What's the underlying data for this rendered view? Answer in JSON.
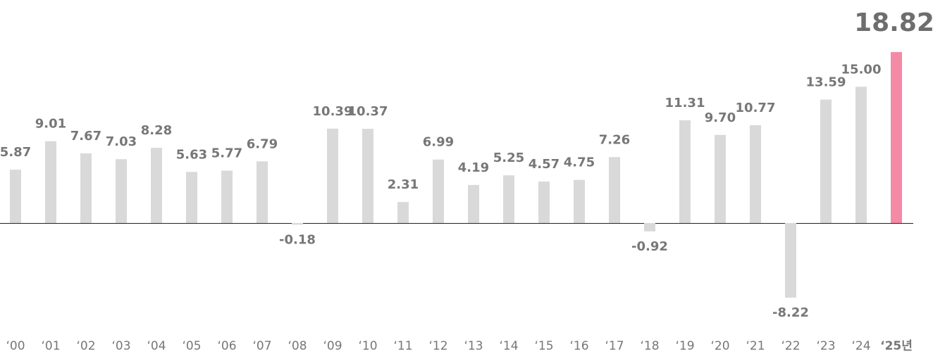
{
  "chart_data": {
    "type": "bar",
    "categories": [
      "‘00",
      "‘01",
      "‘02",
      "‘03",
      "‘04",
      "‘05",
      "‘06",
      "‘07",
      "‘08",
      "‘09",
      "‘10",
      "‘11",
      "‘12",
      "‘13",
      "‘14",
      "‘15",
      "‘16",
      "‘17",
      "‘18",
      "‘19",
      "‘20",
      "‘21",
      "‘22",
      "‘23",
      "‘24",
      "‘25년"
    ],
    "values": [
      5.87,
      9.01,
      7.67,
      7.03,
      8.28,
      5.63,
      5.77,
      6.79,
      -0.18,
      10.39,
      10.37,
      2.31,
      6.99,
      4.19,
      5.25,
      4.57,
      4.75,
      7.26,
      -0.92,
      11.31,
      9.7,
      10.77,
      -8.22,
      13.59,
      15.0,
      18.82
    ],
    "value_labels": [
      "5.87",
      "9.01",
      "7.67",
      "7.03",
      "8.28",
      "5.63",
      "5.77",
      "6.79",
      "-0.18",
      "10.39",
      "10.37",
      "2.31",
      "6.99",
      "4.19",
      "5.25",
      "4.57",
      "4.75",
      "7.26",
      "-0.92",
      "11.31",
      "9.70",
      "10.77",
      "-8.22",
      "13.59",
      "15.00",
      "18.82"
    ],
    "colors": [
      "#d9d9d9",
      "#d9d9d9",
      "#d9d9d9",
      "#d9d9d9",
      "#d9d9d9",
      "#d9d9d9",
      "#d9d9d9",
      "#d9d9d9",
      "#d9d9d9",
      "#d9d9d9",
      "#d9d9d9",
      "#d9d9d9",
      "#d9d9d9",
      "#d9d9d9",
      "#d9d9d9",
      "#d9d9d9",
      "#d9d9d9",
      "#d9d9d9",
      "#d9d9d9",
      "#d9d9d9",
      "#d9d9d9",
      "#d9d9d9",
      "#d9d9d9",
      "#d9d9d9",
      "#d9d9d9",
      "#f48aa5"
    ]
  }
}
